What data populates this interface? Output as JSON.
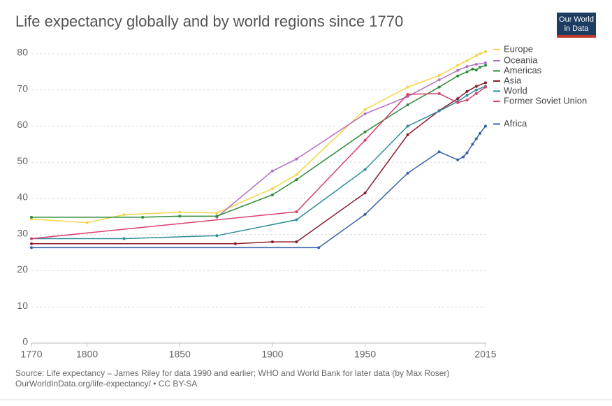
{
  "chart_data": {
    "type": "line",
    "title": "Life expectancy globally and by world regions since 1770",
    "logo": [
      "Our World",
      "in Data"
    ],
    "source": [
      "Source: Life expectancy – James Riley for data 1990 and earlier; WHO and World Bank for later data (by Max Roser)",
      "OurWorldInData.org/life-expectancy/ • CC BY-SA"
    ],
    "xlim": [
      1770,
      2015
    ],
    "xticks": [
      1770,
      1800,
      1850,
      1900,
      1950,
      2015
    ],
    "ylim": [
      0,
      80
    ],
    "yticks": [
      0,
      10,
      20,
      30,
      40,
      50,
      60,
      70,
      80
    ],
    "grid": true,
    "markers": true,
    "legend": "right",
    "series": [
      {
        "name": "Europe",
        "color": "#f5d547",
        "x": [
          1770,
          1800,
          1820,
          1850,
          1870,
          1900,
          1913,
          1950,
          1973,
          1990,
          2000,
          2005,
          2010,
          2012,
          2015
        ],
        "values": [
          34.3,
          33.3,
          35.5,
          36.2,
          36.0,
          42.7,
          46.6,
          64.6,
          70.8,
          74.0,
          76.8,
          78.1,
          79.5,
          80.0,
          80.6
        ]
      },
      {
        "name": "Oceania",
        "color": "#b270c4",
        "x": [
          1870,
          1900,
          1913,
          1950,
          1973,
          1990,
          2000,
          2005,
          2010,
          2015
        ],
        "values": [
          34.8,
          47.6,
          50.9,
          63.4,
          68.2,
          72.8,
          75.4,
          76.5,
          77.1,
          77.5
        ]
      },
      {
        "name": "Americas",
        "color": "#2e8b3a",
        "x": [
          1770,
          1830,
          1850,
          1870,
          1900,
          1913,
          1950,
          1973,
          1990,
          2000,
          2005,
          2008,
          2010,
          2012,
          2015
        ],
        "values": [
          34.8,
          34.8,
          35.1,
          35.1,
          41.0,
          45.2,
          58.4,
          65.9,
          70.8,
          73.9,
          75.0,
          75.8,
          75.5,
          76.3,
          76.8
        ]
      },
      {
        "name": "Asia",
        "color": "#8b1a2e",
        "x": [
          1770,
          1880,
          1900,
          1913,
          1950,
          1973,
          1990,
          2000,
          2005,
          2010,
          2015
        ],
        "values": [
          27.5,
          27.5,
          28.0,
          28.0,
          41.5,
          57.6,
          64.3,
          67.6,
          69.6,
          71.0,
          72.0
        ]
      },
      {
        "name": "World",
        "color": "#2c8c99",
        "x": [
          1770,
          1820,
          1870,
          1913,
          1950,
          1973,
          1990,
          2000,
          2005,
          2010,
          2015
        ],
        "values": [
          28.9,
          28.9,
          29.7,
          34.1,
          48.0,
          60.0,
          64.2,
          66.8,
          68.5,
          70.0,
          71.0
        ]
      },
      {
        "name": "Former Soviet Union",
        "color": "#d6406c",
        "x": [
          1770,
          1913,
          1950,
          1973,
          1990,
          2000,
          2005,
          2010,
          2015
        ],
        "values": [
          28.9,
          36.3,
          56.1,
          68.8,
          69.0,
          66.5,
          67.2,
          69.0,
          70.8
        ]
      },
      {
        "name": "Africa",
        "color": "#3461a8",
        "x": [
          1770,
          1925,
          1950,
          1973,
          1990,
          2000,
          2003,
          2005,
          2008,
          2010,
          2012,
          2015
        ],
        "values": [
          26.4,
          26.4,
          35.6,
          47.0,
          52.9,
          50.7,
          51.5,
          52.6,
          55.0,
          56.5,
          58.0,
          60.0
        ]
      }
    ]
  }
}
